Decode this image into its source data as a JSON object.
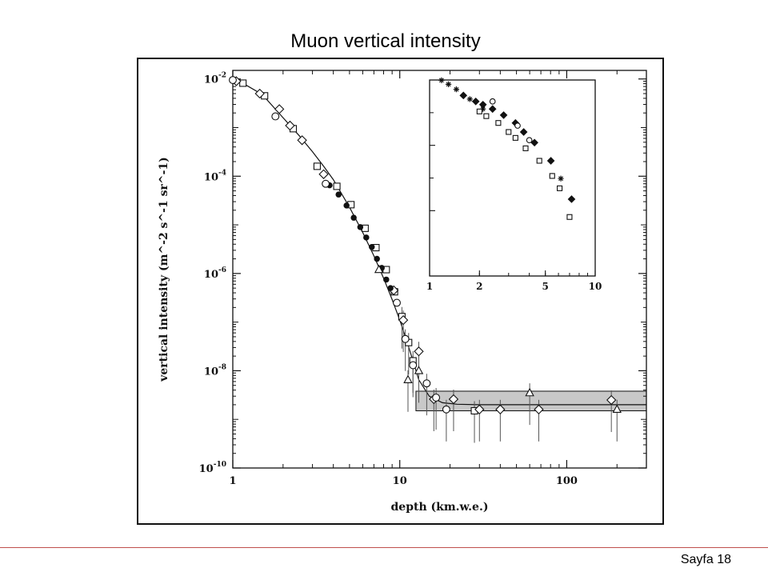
{
  "slide": {
    "title": "Muon vertical intensity",
    "page_label": "Sayfa 18"
  },
  "colors": {
    "ink": "#111111",
    "band_fill": "#c8c8c8",
    "footer_line": "#c0504d"
  },
  "chart_data": [
    {
      "type": "scatter",
      "title": "",
      "xlabel": "depth (km.w.e.)",
      "ylabel": "vertical intensity (m^-2 s^-1 sr^-1)",
      "x_scale": "log",
      "y_scale": "log",
      "xlim": [
        1,
        300
      ],
      "ylim": [
        1e-10,
        0.015
      ],
      "x_ticks": [
        1,
        10,
        100
      ],
      "x_tick_labels": [
        "1",
        "10",
        "100"
      ],
      "y_ticks": [
        1e-10,
        1e-08,
        1e-06,
        0.0001,
        0.01
      ],
      "y_tick_labels": [
        {
          "mantissa": "10",
          "exp": "-10"
        },
        {
          "mantissa": "10",
          "exp": "-8"
        },
        {
          "mantissa": "10",
          "exp": "-6"
        },
        {
          "mantissa": "10",
          "exp": "-4"
        },
        {
          "mantissa": "10",
          "exp": "-2"
        }
      ],
      "grid": false,
      "legend": "none",
      "fit_curve": {
        "x": [
          1,
          1.2,
          1.5,
          2,
          2.5,
          3,
          3.5,
          4,
          5,
          6,
          7,
          8,
          9,
          10,
          11,
          12,
          13,
          15,
          18,
          22,
          30,
          50,
          100,
          300
        ],
        "y": [
          0.0095,
          0.0075,
          0.0048,
          0.0016,
          0.00068,
          0.00032,
          0.00016,
          8.5e-05,
          2.3e-05,
          7e-06,
          2.3e-06,
          8e-07,
          2.9e-07,
          1.1e-07,
          4.2e-08,
          1.6e-08,
          6.5e-09,
          3e-09,
          2.2e-09,
          2.05e-09,
          2e-09,
          2e-09,
          2e-09,
          2e-09
        ]
      },
      "neutrino_band": {
        "x_range": [
          12.5,
          300
        ],
        "y_low": 1.5e-09,
        "y_high": 3.8e-09
      },
      "series": [
        {
          "marker": "open-square",
          "points": [
            [
              1.15,
              0.0082
            ],
            [
              1.55,
              0.0045
            ],
            [
              2.3,
              0.00095
            ],
            [
              3.2,
              0.00016
            ],
            [
              4.2,
              6.2e-05
            ],
            [
              5.1,
              2.6e-05
            ],
            [
              6.2,
              8.5e-06
            ],
            [
              7.2,
              3.4e-06
            ],
            [
              8.3,
              1.2e-06
            ],
            [
              9.3,
              4.2e-07
            ],
            [
              10.3,
              1.3e-07
            ],
            [
              11.3,
              3.8e-08
            ],
            [
              12,
              1.6e-08
            ],
            [
              28,
              1.5e-09
            ]
          ]
        },
        {
          "marker": "open-diamond",
          "points": [
            [
              1.05,
              0.009
            ],
            [
              1.45,
              0.005
            ],
            [
              1.9,
              0.0024
            ],
            [
              2.2,
              0.0011
            ],
            [
              2.6,
              0.00055
            ],
            [
              3.5,
              0.00011
            ],
            [
              9.2,
              4.5e-07
            ],
            [
              10.5,
              1.1e-07
            ],
            [
              13,
              2.5e-08
            ],
            [
              16,
              2.6e-09
            ],
            [
              21,
              2.6e-09
            ],
            [
              30,
              1.6e-09
            ],
            [
              40,
              1.6e-09
            ],
            [
              68,
              1.6e-09
            ],
            [
              185,
              2.5e-09
            ]
          ]
        },
        {
          "marker": "filled-circle",
          "points": [
            [
              3.8,
              6.5e-05
            ],
            [
              4.3,
              4.2e-05
            ],
            [
              4.8,
              2.5e-05
            ],
            [
              5.3,
              1.4e-05
            ],
            [
              5.8,
              9e-06
            ],
            [
              6.3,
              5.5e-06
            ],
            [
              6.8,
              3.5e-06
            ],
            [
              7.3,
              2e-06
            ],
            [
              7.8,
              1.3e-06
            ],
            [
              8.3,
              7.5e-07
            ],
            [
              8.8,
              5e-07
            ]
          ]
        },
        {
          "marker": "open-circle",
          "points": [
            [
              1,
              0.0095
            ],
            [
              1.8,
              0.0017
            ],
            [
              3.6,
              7e-05
            ],
            [
              9.6,
              2.5e-07
            ],
            [
              10.8,
              4.5e-08
            ],
            [
              12,
              1.3e-08
            ],
            [
              14.5,
              5.5e-09
            ],
            [
              16.5,
              2.8e-09
            ],
            [
              19,
              1.6e-09
            ]
          ]
        },
        {
          "marker": "open-triangle",
          "points": [
            [
              7.5,
              1.2e-06
            ],
            [
              11.2,
              6.5e-09
            ],
            [
              13,
              1e-08
            ],
            [
              60,
              3.5e-09
            ],
            [
              200,
              1.6e-09
            ]
          ]
        }
      ]
    },
    {
      "type": "scatter",
      "title": "",
      "xlabel": "",
      "ylabel": "",
      "x_scale": "log",
      "y_scale": "log",
      "xlim": [
        1,
        10
      ],
      "ylim": [
        0.001,
        1
      ],
      "x_ticks": [
        1,
        2,
        5,
        10
      ],
      "x_tick_labels": [
        "1",
        "2",
        "5",
        "10"
      ],
      "legend": "none",
      "series": [
        {
          "marker": "asterisk",
          "points": [
            [
              1.18,
              0.99
            ],
            [
              1.3,
              0.86
            ],
            [
              1.45,
              0.72
            ],
            [
              1.75,
              0.51
            ],
            [
              2.1,
              0.36
            ],
            [
              5.5,
              0.034
            ],
            [
              6.2,
              0.031
            ]
          ]
        },
        {
          "marker": "filled-diamond",
          "points": [
            [
              1.6,
              0.58
            ],
            [
              1.9,
              0.47
            ],
            [
              2.1,
              0.42
            ],
            [
              2.4,
              0.36
            ],
            [
              2.8,
              0.29
            ],
            [
              3.3,
              0.22
            ],
            [
              3.7,
              0.16
            ],
            [
              4.3,
              0.11
            ],
            [
              5.4,
              0.058
            ],
            [
              7.2,
              0.015
            ]
          ]
        },
        {
          "marker": "open-square",
          "points": [
            [
              2,
              0.33
            ],
            [
              2.2,
              0.28
            ],
            [
              2.6,
              0.22
            ],
            [
              3,
              0.16
            ],
            [
              3.3,
              0.13
            ],
            [
              3.8,
              0.09
            ],
            [
              4.6,
              0.058
            ],
            [
              5.5,
              0.034
            ],
            [
              6.1,
              0.022
            ],
            [
              7,
              0.008
            ]
          ]
        },
        {
          "marker": "open-circle",
          "points": [
            [
              2.4,
              0.47
            ],
            [
              3.4,
              0.2
            ],
            [
              4,
              0.12
            ]
          ]
        }
      ]
    }
  ]
}
